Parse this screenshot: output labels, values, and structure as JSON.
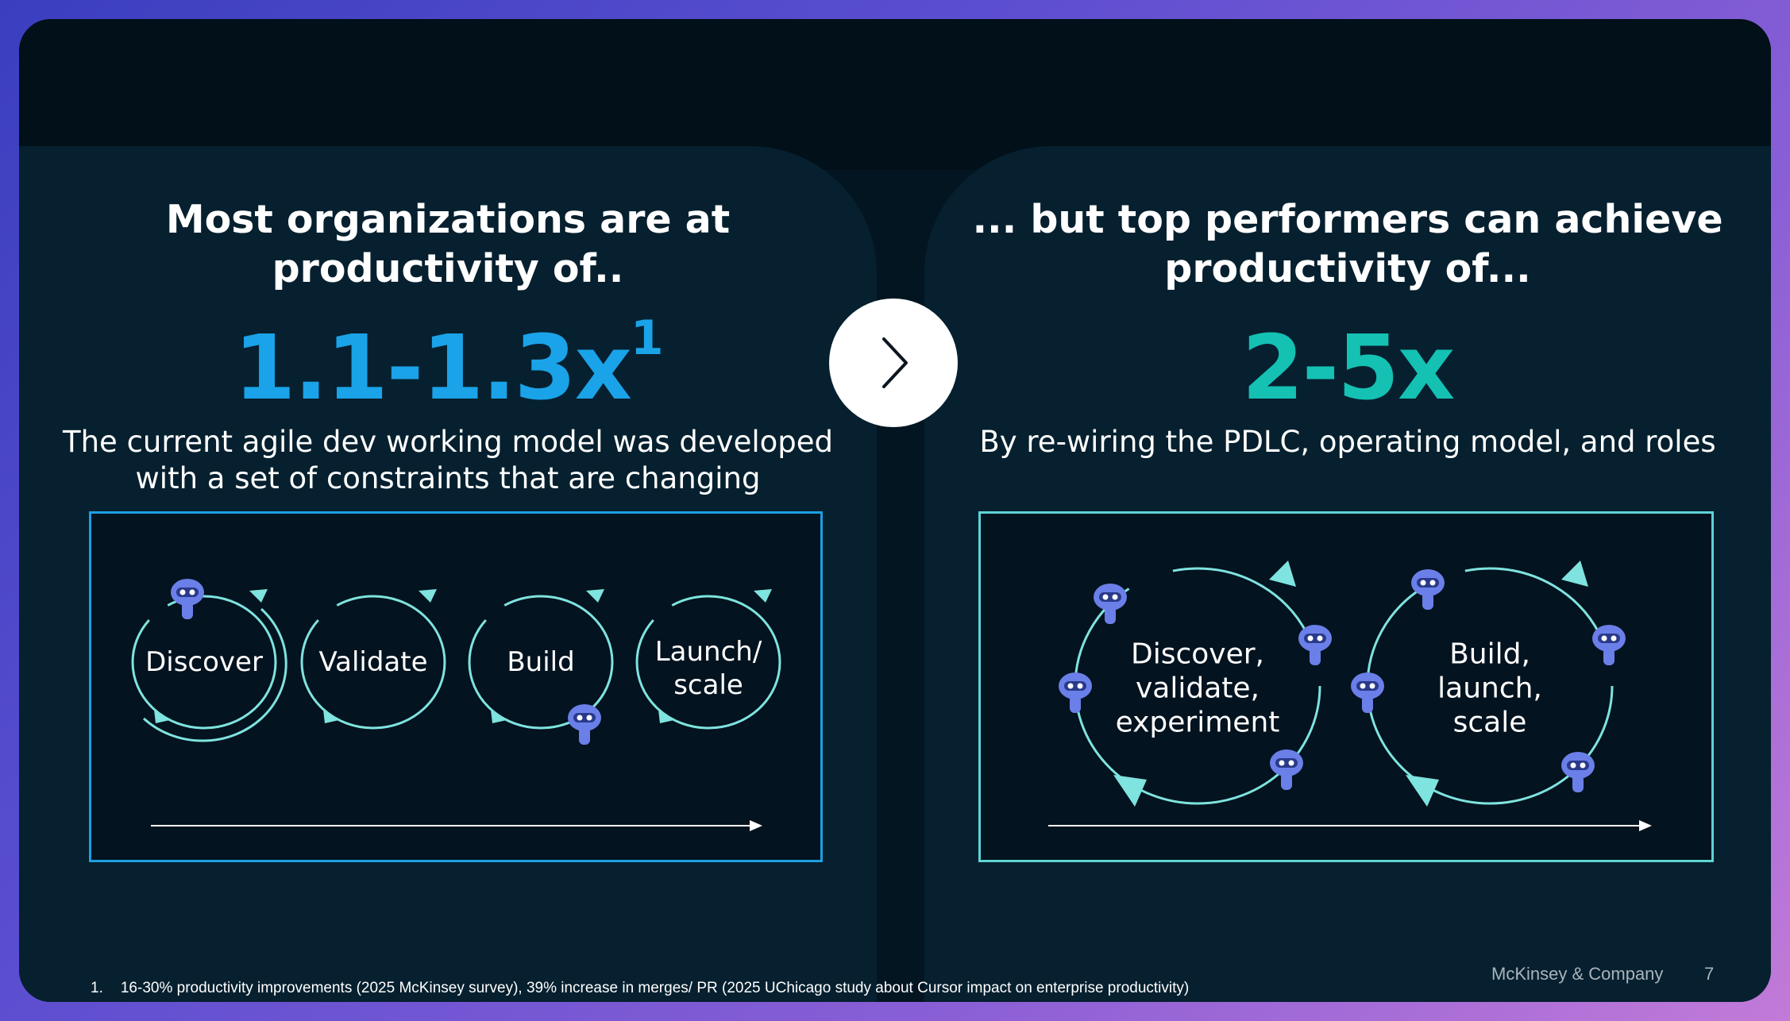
{
  "left": {
    "heading_line1": "Most organizations are at",
    "heading_line2": "productivity of..",
    "figure": "1.1-1.3x",
    "figure_footnote_ref": "1",
    "figure_color": "#1aa3e8",
    "subtext_line1": "The current agile dev working model was developed",
    "subtext_line2": "with a set of constraints that are changing",
    "box_border_color": "#1d9fe3",
    "cycles": [
      {
        "label_line1": "Discover",
        "label_line2": ""
      },
      {
        "label_line1": "Validate",
        "label_line2": ""
      },
      {
        "label_line1": "Build",
        "label_line2": ""
      },
      {
        "label_line1": "Launch/",
        "label_line2": "scale"
      }
    ]
  },
  "right": {
    "heading_line1": "... but top performers can achieve",
    "heading_line2": "productivity of...",
    "figure": "2-5x",
    "figure_color": "#14c1b3",
    "subtext": "By re-wiring the PDLC, operating model, and roles",
    "box_border_color": "#5fd3d6",
    "cycles": [
      {
        "label_line1": "Discover,",
        "label_line2": "validate,",
        "label_line3": "experiment"
      },
      {
        "label_line1": "Build,",
        "label_line2": "launch,",
        "label_line3": "scale"
      }
    ]
  },
  "next_button_icon": "chevron-right-icon",
  "footnote_number": "1.",
  "footnote_text": "16-30% productivity improvements (2025 McKinsey survey), 39% increase in merges/ PR (2025 UChicago study about Cursor impact on enterprise productivity)",
  "brand": "McKinsey & Company",
  "page_number": "7",
  "colors": {
    "cycle_stroke": "#7fe3df",
    "robot_body": "#6b7fe8",
    "timeline": "#ffffff"
  }
}
